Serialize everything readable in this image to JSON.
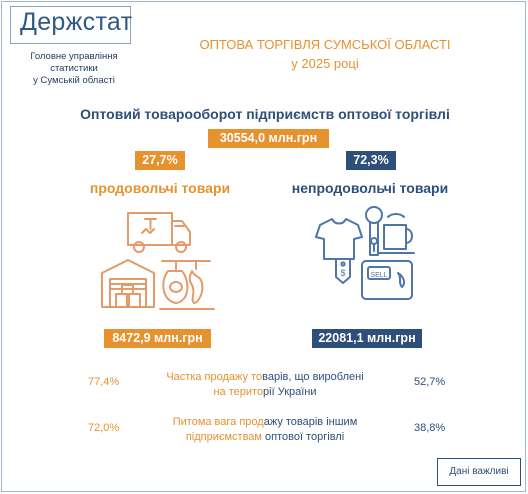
{
  "header": {
    "logo": "Держстат",
    "agency_line1": "Головне управління статистики",
    "agency_line2": "у Сумській області",
    "title_line1": "ОПТОВА ТОРГІВЛЯ СУМСЬКОЇ ОБЛАСТІ",
    "title_line2": "у 2025 році"
  },
  "summary": {
    "subtitle": "Оптовий товарооборот підприємств оптової торгівлі",
    "total": "30554,0 млн.грн"
  },
  "food": {
    "percent": "27,7%",
    "label": "продовольчі товари",
    "value": "8472,9 млн.грн"
  },
  "nonfood": {
    "percent": "72,3%",
    "label": "непродовольчі товари",
    "value": "22081,1 млн.грн",
    "sell_tag": "SELL",
    "price_tag": "$"
  },
  "rows": [
    {
      "left": "77,4%",
      "label_a": "Частка продажу то",
      "label_b": "варів, що вироблені",
      "label_c": "на терито",
      "label_d": "рії України",
      "right": "52,7%"
    },
    {
      "left": "72,0%",
      "label_a": "Питома вага прод",
      "label_b": "ажу товарів іншим",
      "label_c": "підприємствам",
      "label_d": " оптової торгівлі",
      "right": "38,8%"
    }
  ],
  "footer": {
    "button": "Дані важливі"
  },
  "colors": {
    "orange": "#e6922e",
    "navy": "#2e4f7a",
    "icon_orange": "#e59a6a",
    "icon_blue": "#4f76a8"
  }
}
